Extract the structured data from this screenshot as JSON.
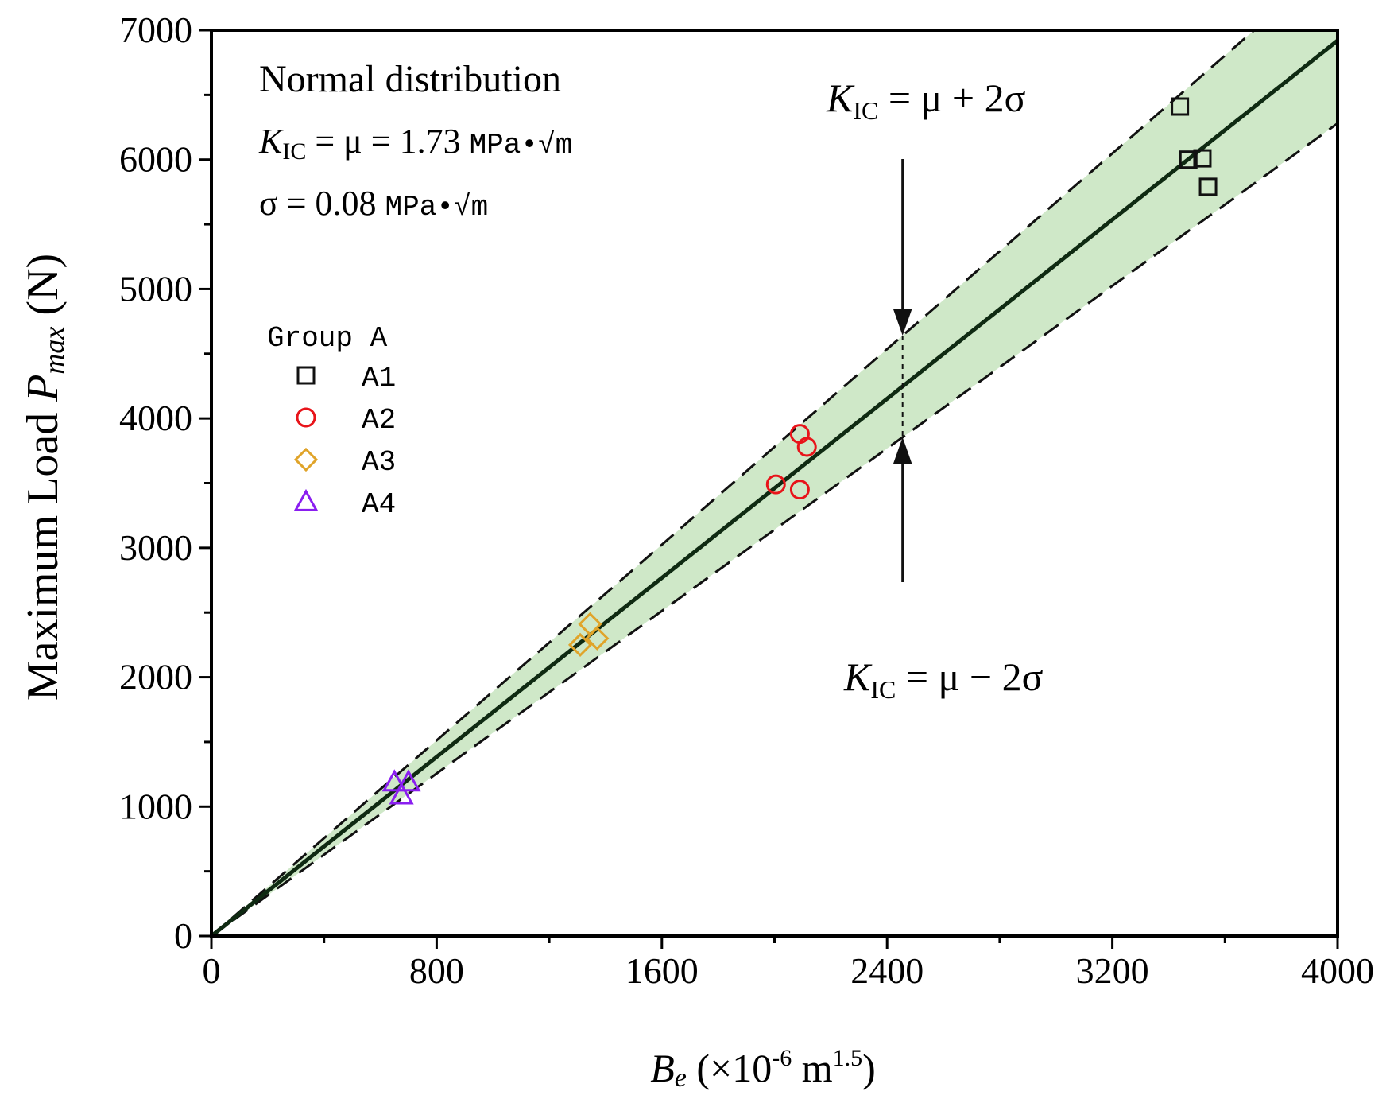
{
  "chart_data": {
    "type": "scatter",
    "title": "",
    "xlabel": {
      "main": "B",
      "sub": "e",
      "rest": " (×10",
      "exp": "-6",
      "unit": " m",
      "unit_exp": "1.5",
      "close": ")"
    },
    "ylabel": {
      "main": "Maximum Load ",
      "var": "P",
      "sub": "max",
      "unit": " (N)"
    },
    "xlim": [
      0,
      4000
    ],
    "ylim": [
      0,
      7000
    ],
    "x_ticks": [
      0,
      800,
      1600,
      2400,
      3200,
      4000
    ],
    "y_ticks": [
      0,
      1000,
      2000,
      3000,
      4000,
      5000,
      6000,
      7000
    ],
    "x_tick_labels": [
      "0",
      "800",
      "1600",
      "2400",
      "3200",
      "4000"
    ],
    "y_tick_labels": [
      "0",
      "1000",
      "2000",
      "3000",
      "4000",
      "5000",
      "6000",
      "7000"
    ],
    "x_minor_step": 400,
    "y_minor_step": 500,
    "grid": false,
    "fit_line": {
      "name": "K_IC = μ",
      "slope": 1.73,
      "x_range": [
        0,
        4000
      ]
    },
    "upper_bound": {
      "name": "K_IC = μ + 2σ",
      "slope": 1.89
    },
    "lower_bound": {
      "name": "K_IC = μ − 2σ",
      "slope": 1.57
    },
    "band_color": "#cfe8c8",
    "series": [
      {
        "name": "A1",
        "marker": "square",
        "color": "#111111",
        "points": [
          [
            3440,
            6410
          ],
          [
            3470,
            6000
          ],
          [
            3520,
            6010
          ],
          [
            3540,
            5790
          ]
        ]
      },
      {
        "name": "A2",
        "marker": "circle",
        "color": "#e8141a",
        "points": [
          [
            2005,
            3490
          ],
          [
            2090,
            3880
          ],
          [
            2115,
            3780
          ],
          [
            2090,
            3450
          ]
        ]
      },
      {
        "name": "A3",
        "marker": "diamond",
        "color": "#e0a42a",
        "points": [
          [
            1310,
            2250
          ],
          [
            1345,
            2410
          ],
          [
            1370,
            2300
          ]
        ]
      },
      {
        "name": "A4",
        "marker": "triangle",
        "color": "#8a1ef0",
        "points": [
          [
            650,
            1190
          ],
          [
            700,
            1190
          ],
          [
            675,
            1090
          ]
        ]
      }
    ],
    "legend": {
      "title": "Group A",
      "position": "left",
      "entries": [
        "A1",
        "A2",
        "A3",
        "A4"
      ]
    },
    "annotations": {
      "box_title": "Normal distribution",
      "kic_line": {
        "k": "K",
        "sub": "IC",
        "eq": " = μ =  1.73 ",
        "unit": "MPa•√m"
      },
      "sigma_line": {
        "sym": "σ = 0.08 ",
        "unit": "MPa•√m"
      },
      "upper_label": {
        "k": "K",
        "sub": "IC",
        "rest": "  =  μ +  2σ"
      },
      "lower_label": {
        "k": "K",
        "sub": "IC",
        "rest": "  =  μ  −  2σ"
      },
      "arrow_x": 2455
    }
  }
}
